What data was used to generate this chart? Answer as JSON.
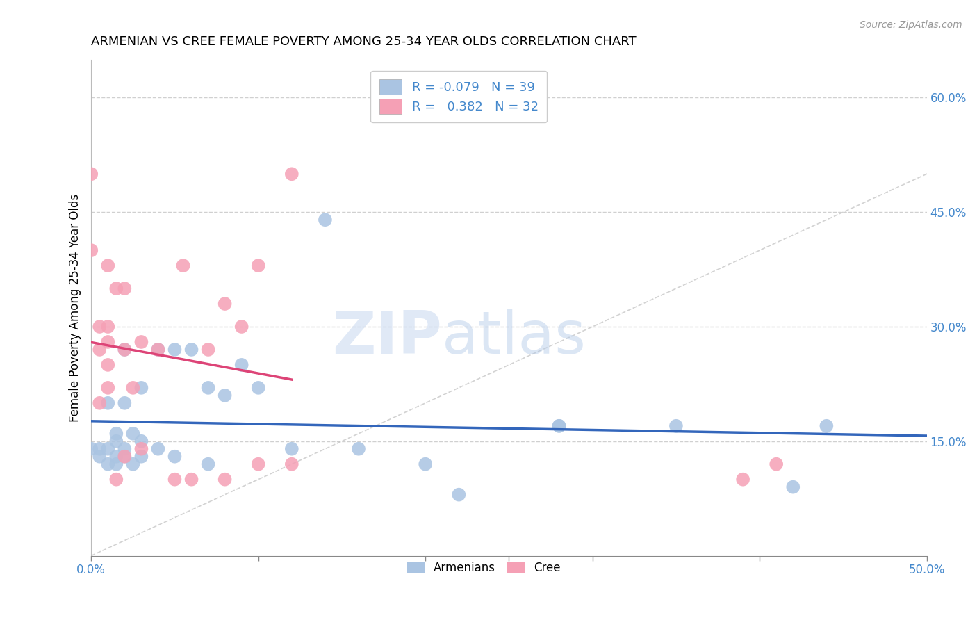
{
  "title": "ARMENIAN VS CREE FEMALE POVERTY AMONG 25-34 YEAR OLDS CORRELATION CHART",
  "source": "Source: ZipAtlas.com",
  "ylabel": "Female Poverty Among 25-34 Year Olds",
  "xlim": [
    0.0,
    0.5
  ],
  "ylim": [
    0.0,
    0.65
  ],
  "xticks": [
    0.0,
    0.1,
    0.2,
    0.3,
    0.4,
    0.5
  ],
  "xticklabels_shown": [
    "0.0%",
    "50.0%"
  ],
  "xticklabels_pos": [
    0.0,
    0.5
  ],
  "yticks": [
    0.15,
    0.3,
    0.45,
    0.6
  ],
  "yticklabels": [
    "15.0%",
    "30.0%",
    "45.0%",
    "60.0%"
  ],
  "armenian_R": -0.079,
  "armenian_N": 39,
  "cree_R": 0.382,
  "cree_N": 32,
  "armenian_color": "#aac4e2",
  "cree_color": "#f5a0b5",
  "armenian_line_color": "#3366bb",
  "cree_line_color": "#dd4477",
  "diagonal_color": "#c0c0c0",
  "grid_color": "#d0d0d0",
  "legend_text_color": "#4488cc",
  "watermark_zip": "ZIP",
  "watermark_atlas": "atlas",
  "armenian_x": [
    0.0,
    0.005,
    0.005,
    0.01,
    0.01,
    0.01,
    0.015,
    0.015,
    0.015,
    0.015,
    0.02,
    0.02,
    0.02,
    0.02,
    0.025,
    0.025,
    0.03,
    0.03,
    0.03,
    0.04,
    0.04,
    0.05,
    0.05,
    0.06,
    0.07,
    0.07,
    0.08,
    0.09,
    0.1,
    0.12,
    0.14,
    0.16,
    0.2,
    0.22,
    0.28,
    0.28,
    0.35,
    0.42,
    0.44
  ],
  "armenian_y": [
    0.14,
    0.13,
    0.14,
    0.12,
    0.14,
    0.2,
    0.12,
    0.13,
    0.15,
    0.16,
    0.13,
    0.14,
    0.2,
    0.27,
    0.12,
    0.16,
    0.13,
    0.15,
    0.22,
    0.14,
    0.27,
    0.13,
    0.27,
    0.27,
    0.12,
    0.22,
    0.21,
    0.25,
    0.22,
    0.14,
    0.44,
    0.14,
    0.12,
    0.08,
    0.17,
    0.17,
    0.17,
    0.09,
    0.17
  ],
  "cree_x": [
    0.0,
    0.0,
    0.005,
    0.005,
    0.005,
    0.01,
    0.01,
    0.01,
    0.01,
    0.01,
    0.015,
    0.015,
    0.02,
    0.02,
    0.02,
    0.025,
    0.03,
    0.03,
    0.04,
    0.05,
    0.055,
    0.06,
    0.07,
    0.08,
    0.08,
    0.09,
    0.1,
    0.1,
    0.12,
    0.12,
    0.39,
    0.41
  ],
  "cree_y": [
    0.4,
    0.5,
    0.2,
    0.27,
    0.3,
    0.22,
    0.25,
    0.28,
    0.3,
    0.38,
    0.1,
    0.35,
    0.13,
    0.27,
    0.35,
    0.22,
    0.14,
    0.28,
    0.27,
    0.1,
    0.38,
    0.1,
    0.27,
    0.33,
    0.1,
    0.3,
    0.12,
    0.38,
    0.12,
    0.5,
    0.1,
    0.12
  ]
}
